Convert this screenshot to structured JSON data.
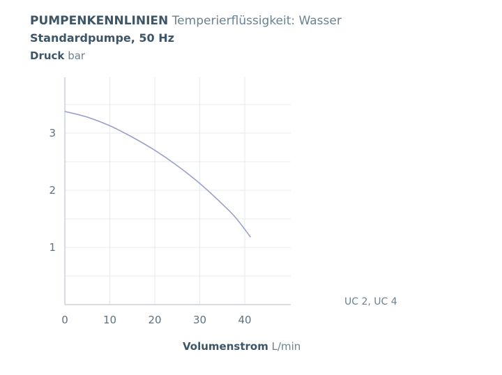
{
  "header": {
    "title_bold": "PUMPENKENNLINIEN",
    "title_rest": "Temperierflüssigkeit: Wasser",
    "subtitle": "Standardpumpe, 50 Hz",
    "ylabel_bold": "Druck",
    "ylabel_unit": "bar"
  },
  "xaxis": {
    "label_bold": "Volumenstrom",
    "label_unit": "L/min"
  },
  "colors": {
    "curve": "#9a9fcb",
    "axis": "#c8d1d8",
    "grid": "#e6eaed",
    "text": "#3d5566"
  },
  "chart_data": {
    "type": "line",
    "title": "PUMPENKENNLINIEN Temperierflüssigkeit: Wasser",
    "subtitle": "Standardpumpe, 50 Hz",
    "xlabel": "Volumenstrom L/min",
    "ylabel": "Druck bar",
    "xlim": [
      0,
      50
    ],
    "ylim": [
      0,
      4
    ],
    "xticks": [
      0,
      10,
      20,
      30,
      40
    ],
    "yticks": [
      1,
      2,
      3
    ],
    "grid": true,
    "legend_position": "bottom-right",
    "series": [
      {
        "name": "UC 2, UC 4",
        "x": [
          0,
          5,
          10,
          15,
          20,
          25,
          30,
          35,
          38,
          41.3
        ],
        "y": [
          3.38,
          3.28,
          3.13,
          2.93,
          2.7,
          2.43,
          2.12,
          1.76,
          1.52,
          1.18
        ]
      }
    ]
  }
}
